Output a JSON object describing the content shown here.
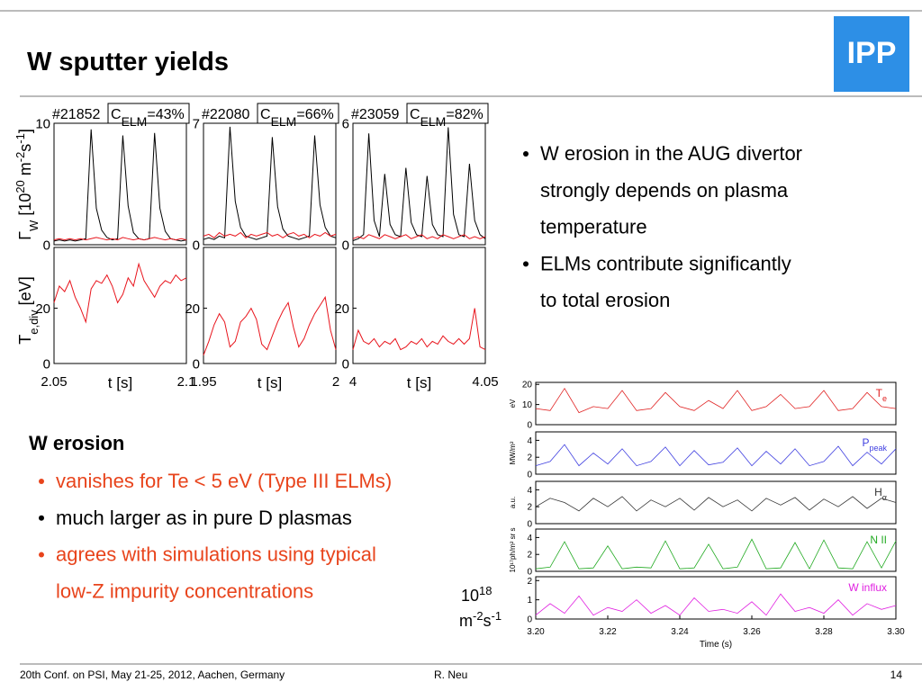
{
  "header": {
    "title": "W sputter yields",
    "logo": "IPP"
  },
  "right_bullets": [
    {
      "lines": [
        "W erosion in the AUG divertor",
        "strongly depends on plasma",
        "temperature"
      ]
    },
    {
      "lines": [
        "ELMs contribute significantly",
        "to total erosion"
      ]
    }
  ],
  "w_erosion": {
    "heading": "W erosion",
    "bullets": [
      {
        "lines": [
          "vanishes for Te < 5 eV (Type III ELMs)"
        ],
        "color": "#e8441c"
      },
      {
        "lines": [
          "much larger as in pure D plasmas"
        ],
        "color": "#000000"
      },
      {
        "lines": [
          "agrees with simulations using typical",
          "low-Z impurity concentrations"
        ],
        "color": "#e8441c"
      }
    ]
  },
  "left_panels": {
    "y_label_top": [
      {
        "text": "Γ"
      },
      {
        "text": "W",
        "pos": "sub"
      },
      {
        "text": " [10"
      },
      {
        "text": "20",
        "pos": "sup"
      },
      {
        "text": " m"
      },
      {
        "text": "-2",
        "pos": "sup"
      },
      {
        "text": "s"
      },
      {
        "text": "-1",
        "pos": "sup"
      },
      {
        "text": "]"
      }
    ],
    "y_label_bottom": [
      {
        "text": "T"
      },
      {
        "text": "e,div",
        "pos": "sub"
      },
      {
        "text": " [eV]"
      }
    ],
    "columns": [
      {
        "shot": "#21852",
        "c": "C",
        "c_sub": "ELM",
        "c_value": "=43%",
        "xlim": [
          2.05,
          2.1
        ],
        "xticks": [
          2.05,
          2.1
        ],
        "xlabel": "t [s]",
        "x": [
          2.05,
          2.052,
          2.054,
          2.056,
          2.058,
          2.06,
          2.062,
          2.064,
          2.066,
          2.068,
          2.07,
          2.072,
          2.074,
          2.076,
          2.078,
          2.08,
          2.082,
          2.084,
          2.086,
          2.088,
          2.09,
          2.092,
          2.094,
          2.096,
          2.098,
          2.1
        ],
        "flux": {
          "ylim": [
            0,
            10
          ],
          "yticks": [
            0,
            10
          ],
          "series": [
            {
              "color": "#000000",
              "values": [
                0.3,
                0.4,
                0.3,
                0.4,
                0.3,
                0.4,
                0.5,
                9.5,
                3,
                1.2,
                0.6,
                0.4,
                0.5,
                9,
                3.2,
                1,
                0.5,
                0.4,
                0.5,
                9.2,
                3,
                1.1,
                0.5,
                0.4,
                0.3,
                0.4
              ]
            },
            {
              "color": "#e8141c",
              "values": [
                0.4,
                0.5,
                0.4,
                0.5,
                0.4,
                0.5,
                0.4,
                0.5,
                0.6,
                0.5,
                0.4,
                0.5,
                0.4,
                0.6,
                0.5,
                0.4,
                0.5,
                0.4,
                0.5,
                0.6,
                0.5,
                0.4,
                0.5,
                0.4,
                0.5,
                0.4
              ]
            }
          ]
        },
        "te": {
          "ylim": [
            0,
            42
          ],
          "yticks": [
            0,
            20
          ],
          "series": [
            {
              "color": "#e8141c",
              "values": [
                22,
                28,
                26,
                30,
                24,
                20,
                15,
                27,
                30,
                29,
                32,
                28,
                22,
                25,
                31,
                28,
                36,
                30,
                27,
                24,
                28,
                30,
                29,
                32,
                30,
                31
              ]
            }
          ]
        }
      },
      {
        "shot": "#22080",
        "c": "C",
        "c_sub": "ELM",
        "c_value": "=66%",
        "xlim": [
          1.95,
          2
        ],
        "xticks": [
          1.95,
          2
        ],
        "xlabel": "t [s]",
        "x": [
          1.95,
          1.952,
          1.954,
          1.956,
          1.958,
          1.96,
          1.962,
          1.964,
          1.966,
          1.968,
          1.97,
          1.972,
          1.974,
          1.976,
          1.978,
          1.98,
          1.982,
          1.984,
          1.986,
          1.988,
          1.99,
          1.992,
          1.994,
          1.996,
          1.998,
          2
        ],
        "flux": {
          "ylim": [
            0,
            7
          ],
          "yticks": [
            0,
            7
          ],
          "series": [
            {
              "color": "#000000",
              "values": [
                0.3,
                0.4,
                0.3,
                0.5,
                0.4,
                6.8,
                2.5,
                1,
                0.5,
                0.4,
                0.3,
                0.4,
                0.5,
                6.2,
                2.2,
                0.9,
                0.5,
                0.4,
                0.3,
                0.4,
                0.5,
                6.3,
                2.3,
                1,
                0.5,
                0.4
              ]
            },
            {
              "color": "#e8141c",
              "values": [
                0.5,
                0.6,
                0.4,
                0.7,
                0.5,
                0.6,
                0.5,
                0.7,
                0.4,
                0.6,
                0.5,
                0.6,
                0.7,
                0.5,
                0.6,
                0.4,
                0.6,
                0.7,
                0.5,
                0.6,
                0.4,
                0.6,
                0.5,
                0.7,
                0.5,
                0.6
              ]
            }
          ]
        },
        "te": {
          "ylim": [
            0,
            42
          ],
          "yticks": [
            0,
            20
          ],
          "series": [
            {
              "color": "#e8141c",
              "values": [
                3,
                8,
                14,
                18,
                15,
                6,
                8,
                15,
                17,
                20,
                16,
                7,
                5,
                10,
                15,
                19,
                22,
                13,
                6,
                9,
                14,
                18,
                21,
                24,
                12,
                5
              ]
            }
          ]
        }
      },
      {
        "shot": "#23059",
        "c": "C",
        "c_sub": "ELM",
        "c_value": "=82%",
        "xlim": [
          4,
          4.05
        ],
        "xticks": [
          4,
          4.05
        ],
        "xlabel": "t [s]",
        "x": [
          4,
          4.002,
          4.004,
          4.006,
          4.008,
          4.01,
          4.012,
          4.014,
          4.016,
          4.018,
          4.02,
          4.022,
          4.024,
          4.026,
          4.028,
          4.03,
          4.032,
          4.034,
          4.036,
          4.038,
          4.04,
          4.042,
          4.044,
          4.046,
          4.048,
          4.05
        ],
        "flux": {
          "ylim": [
            0,
            6
          ],
          "yticks": [
            0,
            6
          ],
          "series": [
            {
              "color": "#000000",
              "values": [
                0.2,
                0.3,
                0.5,
                5.5,
                1.2,
                0.4,
                3.5,
                1,
                0.5,
                0.4,
                3.8,
                1.1,
                0.5,
                0.4,
                3.4,
                1,
                0.5,
                0.4,
                5.8,
                1.5,
                0.5,
                0.4,
                4,
                1.2,
                0.5,
                0.3
              ]
            },
            {
              "color": "#e8141c",
              "values": [
                0.3,
                0.4,
                0.3,
                0.5,
                0.4,
                0.3,
                0.5,
                0.4,
                0.3,
                0.4,
                0.5,
                0.3,
                0.4,
                0.5,
                0.3,
                0.4,
                0.3,
                0.5,
                0.4,
                0.3,
                0.4,
                0.5,
                0.3,
                0.4,
                0.3,
                0.4
              ]
            }
          ]
        },
        "te": {
          "ylim": [
            0,
            42
          ],
          "yticks": [
            0,
            20
          ],
          "series": [
            {
              "color": "#e8141c",
              "values": [
                5,
                12,
                8,
                7,
                9,
                6,
                8,
                7,
                9,
                5,
                6,
                8,
                7,
                9,
                6,
                8,
                7,
                10,
                8,
                7,
                9,
                7,
                9,
                20,
                6,
                5
              ]
            }
          ]
        }
      }
    ]
  },
  "right_chart": {
    "xlabel": "Time (s)",
    "xlim": [
      3.2,
      3.3
    ],
    "xticks": [
      {
        "value": 3.2,
        "label": "3.20"
      },
      3.22,
      3.24,
      3.26,
      3.28,
      {
        "value": 3.3,
        "label": "3.30"
      }
    ],
    "x": [
      3.2,
      3.204,
      3.208,
      3.212,
      3.216,
      3.22,
      3.224,
      3.228,
      3.232,
      3.236,
      3.24,
      3.244,
      3.248,
      3.252,
      3.256,
      3.26,
      3.264,
      3.268,
      3.272,
      3.276,
      3.28,
      3.284,
      3.288,
      3.292,
      3.296,
      3.3
    ],
    "panels": [
      {
        "unit": "eV",
        "label": "T",
        "label_sub": "e",
        "color": "#e02020",
        "ylim": [
          0,
          21
        ],
        "yticks": [
          0,
          10,
          20
        ],
        "values": [
          8,
          7,
          18,
          6,
          9,
          8,
          17,
          7,
          8,
          16,
          9,
          7,
          12,
          8,
          17,
          7,
          9,
          15,
          8,
          9,
          17,
          7,
          8,
          16,
          9,
          8
        ]
      },
      {
        "unit": "MW/m²",
        "label": "P",
        "label_sub": "peak",
        "color": "#4040e0",
        "ylim": [
          0,
          5
        ],
        "yticks": [
          0,
          2,
          4
        ],
        "values": [
          1,
          1.5,
          3.5,
          1,
          2.5,
          1.2,
          3,
          1,
          1.5,
          3.2,
          1,
          2.8,
          1.1,
          1.4,
          3.1,
          1,
          2.7,
          1.2,
          3,
          1,
          1.5,
          3.3,
          1,
          2.6,
          1.2,
          3
        ]
      },
      {
        "unit": "a.u.",
        "label": "H",
        "label_sub": "α",
        "color": "#333333",
        "ylim": [
          0,
          5
        ],
        "yticks": [
          0,
          2,
          4
        ],
        "values": [
          2,
          3,
          2.5,
          1.5,
          3,
          2,
          3.2,
          1.5,
          2.8,
          2,
          3,
          1.6,
          3.1,
          2,
          2.8,
          1.5,
          3,
          2.2,
          3.1,
          1.6,
          2.9,
          2,
          3.2,
          1.8,
          3,
          2.5
        ]
      },
      {
        "unit": "10¹⁷ph/m² sr s",
        "label": "N II",
        "color": "#22aa22",
        "ylim": [
          0,
          5
        ],
        "yticks": [
          0,
          2,
          4
        ],
        "values": [
          0.3,
          0.5,
          3.5,
          0.3,
          0.4,
          3,
          0.3,
          0.5,
          0.4,
          3.6,
          0.3,
          0.4,
          3.2,
          0.3,
          0.5,
          3.8,
          0.3,
          0.4,
          3.4,
          0.3,
          3.7,
          0.4,
          0.3,
          3.5,
          0.4,
          3.6
        ]
      },
      {
        "label": "W influx",
        "color": "#e020e0",
        "ylim": [
          0,
          2.2
        ],
        "yticks": [
          0,
          1,
          2
        ],
        "values": [
          0.2,
          0.8,
          0.3,
          1.2,
          0.2,
          0.6,
          0.4,
          1,
          0.3,
          0.7,
          0.2,
          1.1,
          0.4,
          0.5,
          0.3,
          0.9,
          0.2,
          1.3,
          0.4,
          0.6,
          0.3,
          1,
          0.2,
          0.8,
          0.5,
          0.7
        ]
      }
    ],
    "flux_unit": [
      [
        {
          "text": "10"
        },
        {
          "text": "18",
          "pos": "sup"
        }
      ],
      [
        {
          "text": "m"
        },
        {
          "text": "-2",
          "pos": "sup"
        },
        {
          "text": "s"
        },
        {
          "text": "-1",
          "pos": "sup"
        }
      ]
    ]
  },
  "footer": {
    "conference": "20th Conf. on  PSI, May 21-25, 2012, Aachen, Germany",
    "author": "R. Neu",
    "page": "14"
  }
}
